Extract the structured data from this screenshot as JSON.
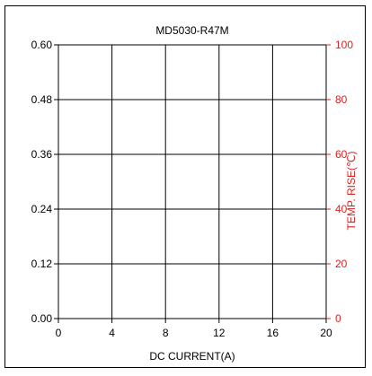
{
  "chart_data": {
    "type": "line",
    "title": "MD5030-R47M",
    "xlabel": "DC CURRENT(A)",
    "ylabel": "",
    "y2label": "TEMP. RISE(℃)",
    "xlim": [
      0,
      20
    ],
    "ylim": [
      0,
      0.6
    ],
    "y2lim": [
      0,
      100
    ],
    "x_ticks": [
      "0",
      "4",
      "8",
      "12",
      "16",
      "20"
    ],
    "y_ticks": [
      "0.00",
      "0.12",
      "0.24",
      "0.36",
      "0.48",
      "0.60"
    ],
    "y2_ticks": [
      "0",
      "20",
      "40",
      "60",
      "80",
      "100"
    ],
    "grid": true,
    "series": []
  },
  "colors": {
    "axis": "#000000",
    "grid": "#000000",
    "secondary_axis": "#e02020"
  }
}
